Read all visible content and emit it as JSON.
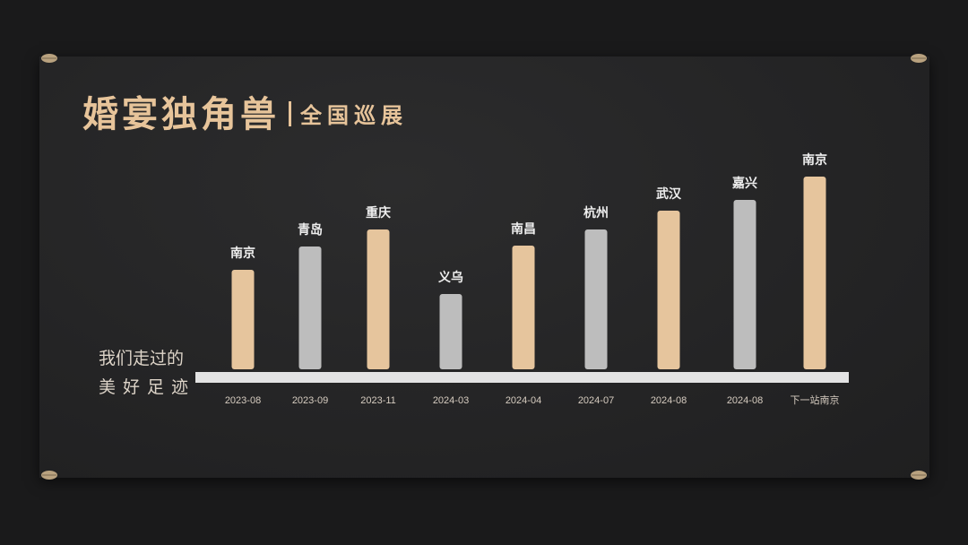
{
  "header": {
    "title": "婚宴独角兽",
    "subtitle": "全国巡展"
  },
  "side_note": {
    "line1": "我们走过的",
    "line2": "美好足迹"
  },
  "colors": {
    "gold": "#e6c59d",
    "grey": "#bdbdbd",
    "title": "#e7c49a"
  },
  "chart_data": {
    "type": "bar",
    "categories": [
      "2023-08",
      "2023-09",
      "2023-11",
      "2024-03",
      "2024-04",
      "2024-07",
      "2024-08",
      "2024-08",
      "下一站南京"
    ],
    "series": [
      {
        "labels": [
          "南京",
          "青岛",
          "重庆",
          "义乌",
          "南昌",
          "杭州",
          "武汉",
          "嘉兴",
          "南京"
        ],
        "values": [
          111,
          137,
          156,
          84,
          138,
          156,
          177,
          189,
          215
        ],
        "colors": [
          "gold",
          "grey",
          "gold",
          "grey",
          "gold",
          "grey",
          "gold",
          "grey",
          "gold"
        ]
      }
    ],
    "ylim": [
      0,
      230
    ],
    "grid": false,
    "legend": "none"
  }
}
